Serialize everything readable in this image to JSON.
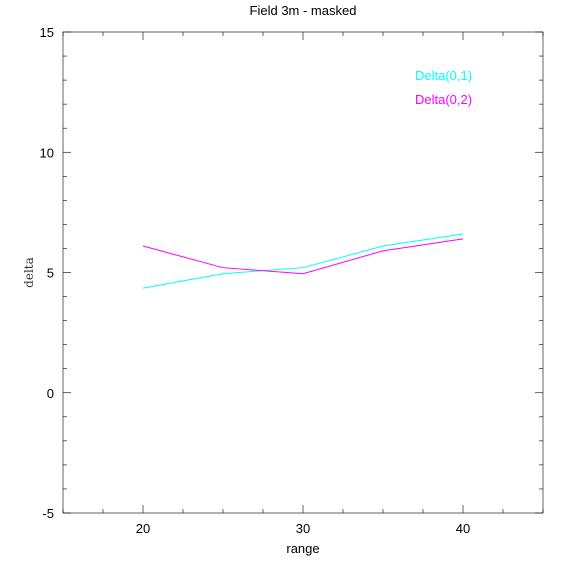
{
  "chart_data": {
    "type": "line",
    "title": "Field 3m - masked",
    "xlabel": "range",
    "ylabel": "delta",
    "xlim": [
      15,
      45
    ],
    "ylim": [
      -5,
      15
    ],
    "xticks": [
      20,
      30,
      40
    ],
    "yticks": [
      -5,
      0,
      5,
      10,
      15
    ],
    "x_minor_step": 2.5,
    "y_minor_step": 1,
    "grid": false,
    "legend_position": "top-right",
    "x": [
      20,
      25,
      30,
      35,
      40
    ],
    "series": [
      {
        "name": "Delta(0,1)",
        "color": "#00ffff",
        "values": [
          4.35,
          4.95,
          5.2,
          6.1,
          6.6
        ]
      },
      {
        "name": "Delta(0,2)",
        "color": "#ff00ff",
        "values": [
          6.1,
          5.2,
          4.95,
          5.9,
          6.4
        ]
      }
    ]
  }
}
